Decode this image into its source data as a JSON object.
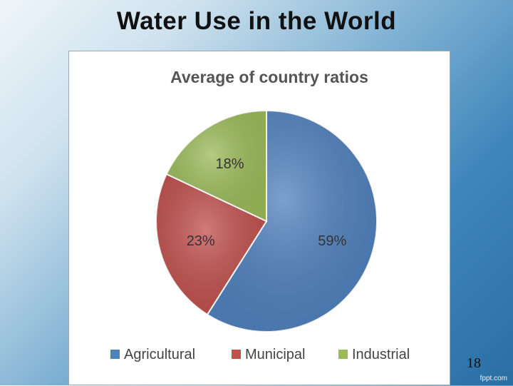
{
  "slide": {
    "title": "Water Use in the World",
    "page_number": "18",
    "watermark": "fppt.com"
  },
  "chart_data": {
    "type": "pie",
    "title": "Average of country ratios",
    "categories": [
      "Agricultural",
      "Municipal",
      "Industrial"
    ],
    "values": [
      59,
      23,
      18
    ],
    "value_labels": [
      "59%",
      "23%",
      "18%"
    ],
    "colors": [
      "#4f81bd",
      "#c0504d",
      "#9bbb59"
    ],
    "legend_position": "bottom"
  }
}
